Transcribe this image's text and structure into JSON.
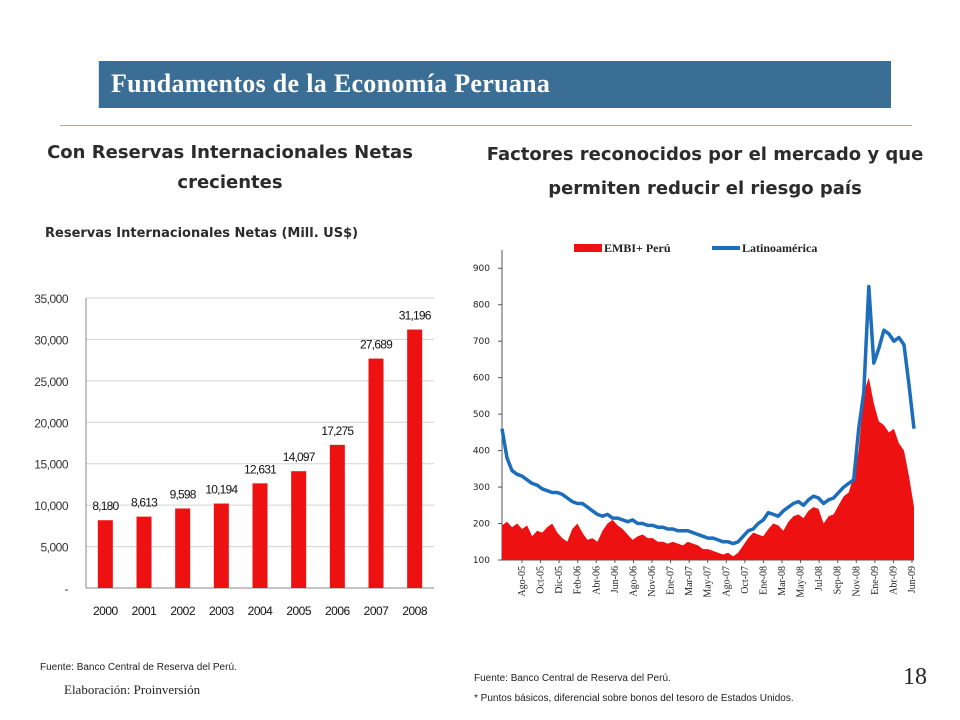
{
  "slide": {
    "title": "Fundamentos de la Economía Peruana",
    "page_number": "18",
    "left_heading": "Con Reservas Internacionales Netas crecientes",
    "right_heading": "Factores reconocidos por el mercado y que permiten reducir el riesgo país",
    "left_source": "Fuente: Banco Central de Reserva del Perú.",
    "left_elaboration": "Elaboración: Proinversión",
    "right_source": "Fuente: Banco Central de Reserva del Perú.",
    "right_note": "* Puntos básicos, diferencial sobre bonos del tesoro de Estados Unidos.",
    "accent_color": "#3a6e95"
  },
  "chart_data": [
    {
      "type": "bar",
      "title": "Reservas Internacionales Netas (Mill. US$)",
      "categories": [
        "2000",
        "2001",
        "2002",
        "2003",
        "2004",
        "2005",
        "2006",
        "2007",
        "2008"
      ],
      "values": [
        8180,
        8613,
        9598,
        10194,
        12631,
        14097,
        17275,
        27689,
        31196
      ],
      "data_labels": [
        "8,180",
        "8,613",
        "9,598",
        "10,194",
        "12,631",
        "14,097",
        "17,275",
        "27,689",
        "31,196"
      ],
      "ylim": [
        0,
        35000
      ],
      "yticks": [
        0,
        5000,
        10000,
        15000,
        20000,
        25000,
        30000,
        35000
      ],
      "ytick_labels": [
        "-",
        "5,000",
        "10,000",
        "15,000",
        "20,000",
        "25,000",
        "30,000",
        "35,000"
      ],
      "grid": true,
      "color": "#ee1111"
    },
    {
      "type": "area",
      "series": [
        {
          "name": "EMBI+ Perú",
          "color": "#ee1111",
          "values": [
            195,
            205,
            190,
            200,
            185,
            195,
            165,
            180,
            175,
            190,
            200,
            175,
            160,
            150,
            185,
            200,
            175,
            155,
            160,
            150,
            180,
            200,
            210,
            195,
            185,
            170,
            155,
            165,
            170,
            160,
            160,
            150,
            150,
            145,
            150,
            145,
            140,
            150,
            145,
            140,
            130,
            130,
            125,
            120,
            115,
            120,
            110,
            120,
            140,
            160,
            175,
            170,
            165,
            185,
            200,
            195,
            180,
            205,
            220,
            225,
            215,
            235,
            245,
            240,
            200,
            220,
            225,
            250,
            275,
            285,
            330,
            400,
            560,
            600,
            530,
            480,
            470,
            450,
            460,
            420,
            400,
            330,
            245
          ]
        },
        {
          "name": "Latinoamérica",
          "color": "#1c6dbb",
          "values": [
            460,
            380,
            345,
            335,
            330,
            320,
            310,
            305,
            295,
            290,
            285,
            285,
            280,
            270,
            260,
            255,
            255,
            245,
            235,
            225,
            220,
            225,
            215,
            215,
            210,
            205,
            210,
            200,
            200,
            195,
            195,
            190,
            190,
            185,
            185,
            180,
            180,
            180,
            175,
            170,
            165,
            160,
            160,
            155,
            150,
            150,
            145,
            150,
            165,
            180,
            185,
            200,
            210,
            230,
            225,
            220,
            235,
            245,
            255,
            260,
            250,
            265,
            275,
            270,
            255,
            265,
            270,
            285,
            300,
            310,
            320,
            460,
            560,
            850,
            640,
            680,
            730,
            720,
            700,
            710,
            690,
            580,
            460
          ]
        }
      ],
      "x_labels": [
        "Ago-05",
        "Oct-05",
        "Dic-05",
        "Feb-06",
        "Abr-06",
        "Jun-06",
        "Ago-06",
        "Nov-06",
        "Ene-07",
        "Mar-07",
        "May-07",
        "Ago-07",
        "Oct-07",
        "Ene-08",
        "Mar-08",
        "May-08",
        "Jul-08",
        "Sep-08",
        "Nov-08",
        "Ene-09",
        "Abr-09",
        "Jun-09"
      ],
      "ylim": [
        100,
        950
      ],
      "yticks": [
        100,
        200,
        300,
        400,
        500,
        600,
        700,
        800,
        900
      ],
      "ytick_labels": [
        "100",
        "200",
        "300",
        "400",
        "500",
        "600",
        "700",
        "800",
        "900"
      ],
      "legend_position": "top",
      "grid": false
    }
  ]
}
